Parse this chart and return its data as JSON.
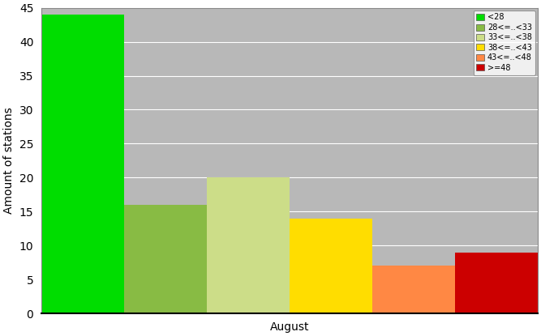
{
  "bars": [
    {
      "label": "<28",
      "value": 44,
      "color": "#00dd00"
    },
    {
      "label": "28<=..<33",
      "value": 16,
      "color": "#88bb44"
    },
    {
      "label": "33<=..<38",
      "value": 20,
      "color": "#ccdd88"
    },
    {
      "label": "38<=..<43",
      "value": 14,
      "color": "#ffdd00"
    },
    {
      "label": "43<=..<48",
      "value": 7,
      "color": "#ff8844"
    },
    {
      "label": ">=48",
      "value": 9,
      "color": "#cc0000"
    }
  ],
  "ylabel": "Amount of stations",
  "xlabel": "August",
  "ylim": [
    0,
    45
  ],
  "yticks": [
    0,
    5,
    10,
    15,
    20,
    25,
    30,
    35,
    40,
    45
  ],
  "plot_bg_color": "#b8b8b8",
  "fig_bg_color": "#ffffff",
  "grid_color": "#ffffff",
  "legend_fontsize": 7,
  "axis_fontsize": 10,
  "ylabel_fontsize": 10
}
